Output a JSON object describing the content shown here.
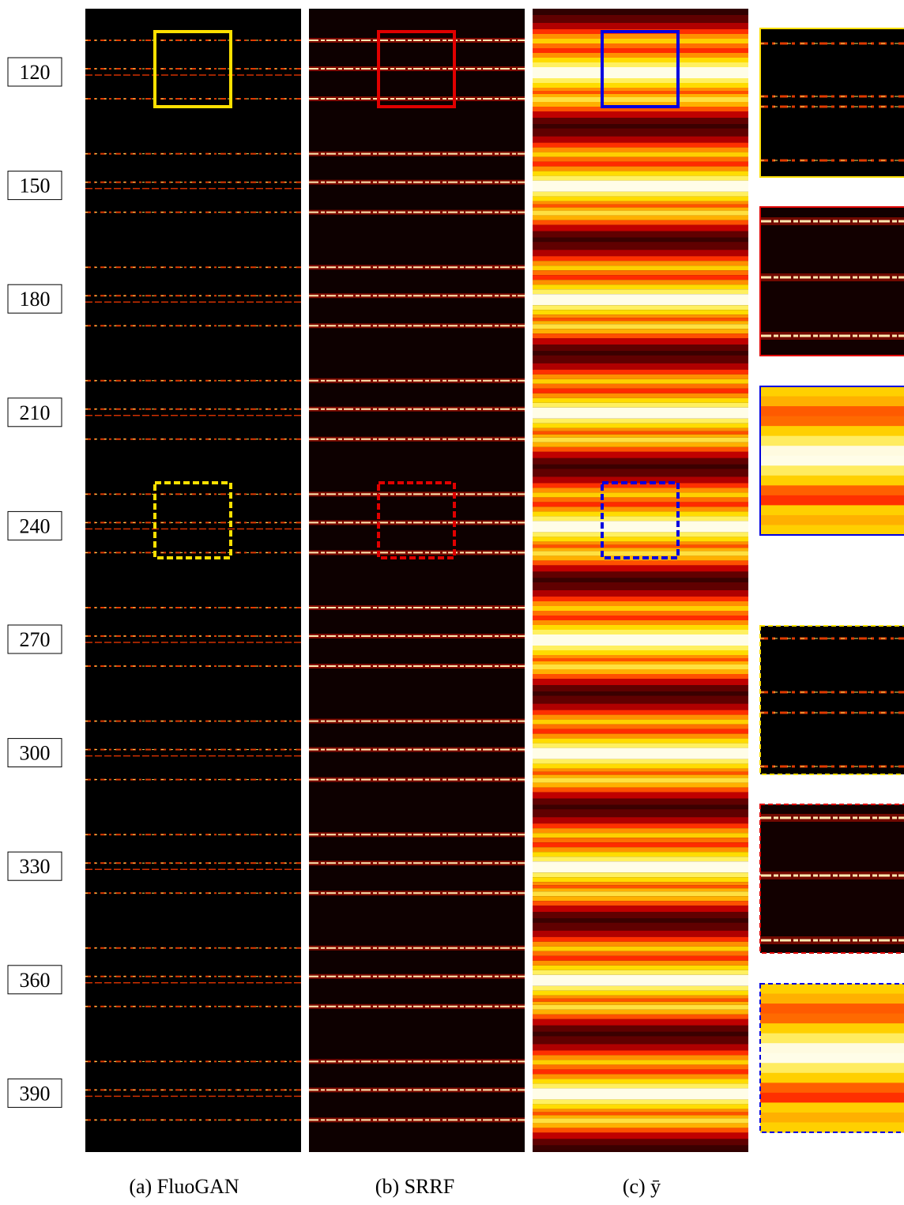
{
  "row_labels": [
    "120",
    "150",
    "180",
    "210",
    "240",
    "270",
    "300",
    "330",
    "360",
    "390"
  ],
  "panels": [
    {
      "caption": "(a) FluoGAN"
    },
    {
      "caption": "(b) SRRF"
    },
    {
      "caption": "(c) ȳ"
    }
  ]
}
